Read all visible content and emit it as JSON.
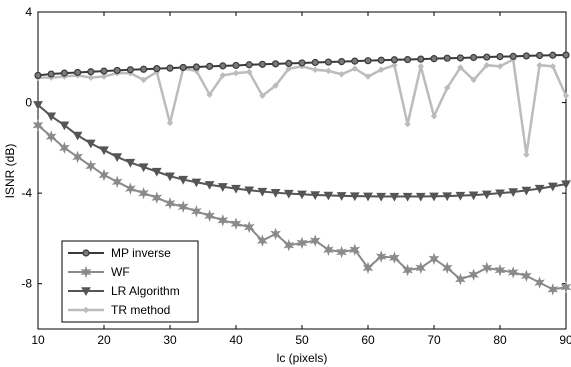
{
  "chart_data": {
    "type": "line",
    "title": "",
    "xlabel": "lc (pixels)",
    "ylabel": "ISNR (dB)",
    "xlim": [
      10,
      90
    ],
    "ylim": [
      -10,
      4
    ],
    "xticks": [
      10,
      20,
      30,
      40,
      50,
      60,
      70,
      80,
      90
    ],
    "yticks": [
      4,
      0,
      -4,
      -8
    ],
    "ytick_labels": [
      "4",
      "0",
      "-4",
      "-8"
    ],
    "grid": false,
    "legend_position": "lower-left",
    "x": [
      10,
      12,
      14,
      16,
      18,
      20,
      22,
      24,
      26,
      28,
      30,
      32,
      34,
      36,
      38,
      40,
      42,
      44,
      46,
      48,
      50,
      52,
      54,
      56,
      58,
      60,
      62,
      64,
      66,
      68,
      70,
      72,
      74,
      76,
      78,
      80,
      82,
      84,
      86,
      88,
      90
    ],
    "series": [
      {
        "name": "MP inverse",
        "color": "#3a3a3a",
        "marker": "circle",
        "values": [
          1.2,
          1.26,
          1.3,
          1.33,
          1.36,
          1.39,
          1.42,
          1.45,
          1.47,
          1.5,
          1.52,
          1.55,
          1.57,
          1.6,
          1.62,
          1.64,
          1.67,
          1.69,
          1.71,
          1.73,
          1.75,
          1.77,
          1.79,
          1.81,
          1.83,
          1.85,
          1.87,
          1.89,
          1.9,
          1.92,
          1.94,
          1.96,
          1.97,
          1.99,
          2.01,
          2.03,
          2.04,
          2.06,
          2.08,
          2.09,
          2.1
        ]
      },
      {
        "name": "WF",
        "color": "#8a8a8a",
        "marker": "star",
        "values": [
          -1.0,
          -1.5,
          -2.0,
          -2.4,
          -2.8,
          -3.2,
          -3.5,
          -3.8,
          -4.0,
          -4.2,
          -4.45,
          -4.6,
          -4.8,
          -5.0,
          -5.2,
          -5.35,
          -5.5,
          -6.1,
          -5.8,
          -6.3,
          -6.2,
          -6.1,
          -6.5,
          -6.6,
          -6.5,
          -7.3,
          -6.8,
          -6.85,
          -7.4,
          -7.3,
          -6.9,
          -7.3,
          -7.8,
          -7.6,
          -7.3,
          -7.4,
          -7.5,
          -7.65,
          -7.95,
          -8.25,
          -8.15
        ]
      },
      {
        "name": "LR Algorithm",
        "color": "#555555",
        "marker": "triangle-down",
        "values": [
          -0.1,
          -0.6,
          -1.0,
          -1.45,
          -1.8,
          -2.1,
          -2.4,
          -2.65,
          -2.85,
          -3.05,
          -3.25,
          -3.4,
          -3.52,
          -3.63,
          -3.72,
          -3.8,
          -3.87,
          -3.93,
          -3.98,
          -4.02,
          -4.05,
          -4.08,
          -4.1,
          -4.12,
          -4.13,
          -4.14,
          -4.15,
          -4.15,
          -4.15,
          -4.15,
          -4.14,
          -4.13,
          -4.11,
          -4.09,
          -4.05,
          -4.0,
          -3.95,
          -3.88,
          -3.8,
          -3.7,
          -3.6
        ]
      },
      {
        "name": "TR method",
        "color": "#bcbcbc",
        "marker": "diamond",
        "values": [
          1.1,
          1.1,
          1.15,
          1.2,
          1.1,
          1.15,
          1.3,
          1.3,
          1.0,
          1.35,
          -0.9,
          1.5,
          1.4,
          0.35,
          1.2,
          1.3,
          1.35,
          0.3,
          0.75,
          1.5,
          1.6,
          1.45,
          1.4,
          1.25,
          1.5,
          1.15,
          1.45,
          1.65,
          -0.95,
          1.6,
          -0.6,
          0.65,
          1.55,
          1.0,
          1.65,
          1.6,
          1.9,
          -2.3,
          1.65,
          1.6,
          0.3
        ]
      }
    ]
  }
}
